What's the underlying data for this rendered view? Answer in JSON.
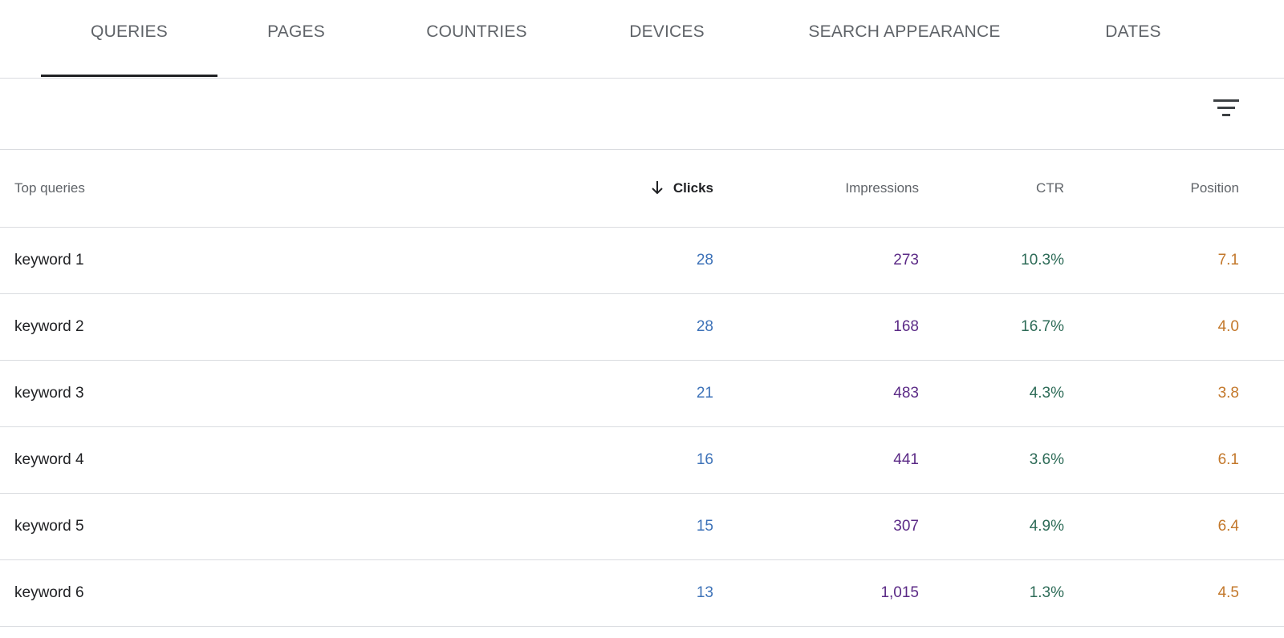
{
  "tabs": [
    {
      "label": "QUERIES",
      "active": true
    },
    {
      "label": "PAGES"
    },
    {
      "label": "COUNTRIES"
    },
    {
      "label": "DEVICES"
    },
    {
      "label": "SEARCH APPEARANCE"
    },
    {
      "label": "DATES"
    }
  ],
  "toolbar": {
    "filter_icon": "filter-list-icon"
  },
  "table": {
    "headers": {
      "query": "Top queries",
      "clicks": "Clicks",
      "impressions": "Impressions",
      "ctr": "CTR",
      "position": "Position",
      "sort_icon": "arrow-down-icon"
    },
    "rows": [
      {
        "query": "keyword 1",
        "clicks": "28",
        "impressions": "273",
        "ctr": "10.3%",
        "position": "7.1"
      },
      {
        "query": "keyword 2",
        "clicks": "28",
        "impressions": "168",
        "ctr": "16.7%",
        "position": "4.0"
      },
      {
        "query": "keyword 3",
        "clicks": "21",
        "impressions": "483",
        "ctr": "4.3%",
        "position": "3.8"
      },
      {
        "query": "keyword 4",
        "clicks": "16",
        "impressions": "441",
        "ctr": "3.6%",
        "position": "6.1"
      },
      {
        "query": "keyword 5",
        "clicks": "15",
        "impressions": "307",
        "ctr": "4.9%",
        "position": "6.4"
      },
      {
        "query": "keyword 6",
        "clicks": "13",
        "impressions": "1,015",
        "ctr": "1.3%",
        "position": "4.5"
      }
    ]
  },
  "colors": {
    "clicks": "#3d72b8",
    "impressions": "#5b2a86",
    "ctr": "#2d6b57",
    "position": "#c3782b"
  }
}
